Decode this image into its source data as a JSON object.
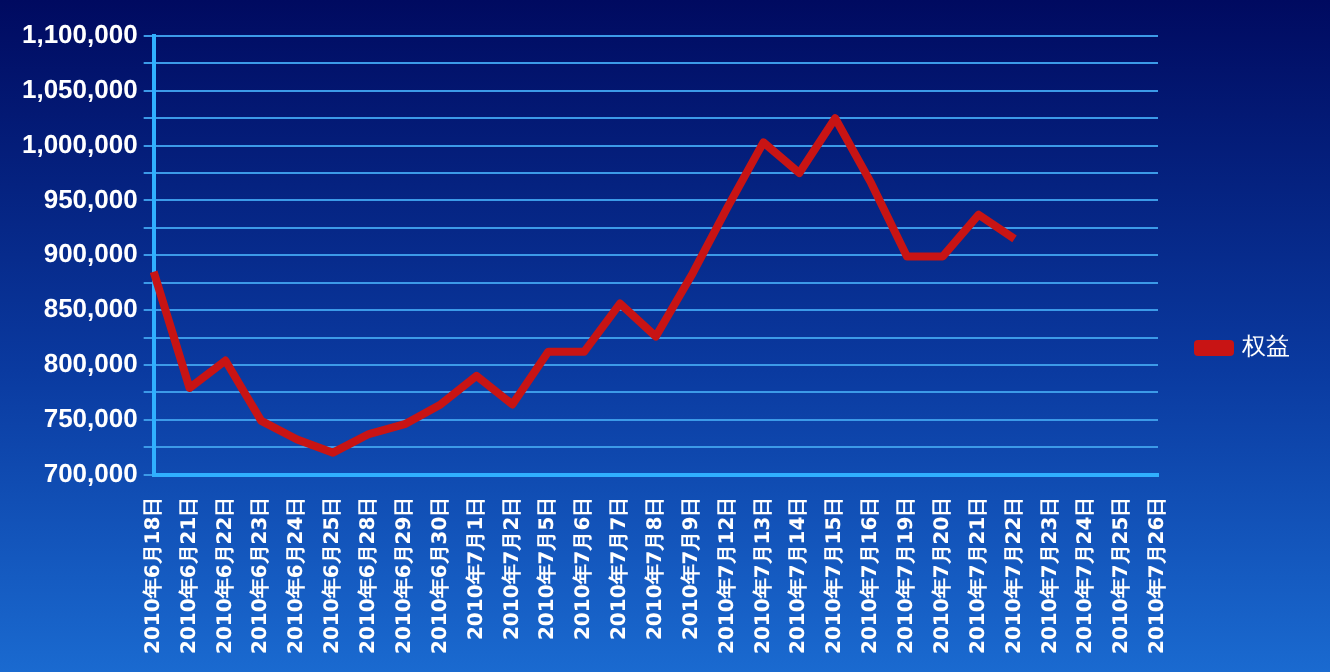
{
  "chart_data": {
    "type": "line",
    "categories": [
      "2010年6月18日",
      "2010年6月21日",
      "2010年6月22日",
      "2010年6月23日",
      "2010年6月24日",
      "2010年6月25日",
      "2010年6月28日",
      "2010年6月29日",
      "2010年6月30日",
      "2010年7月1日",
      "2010年7月2日",
      "2010年7月5日",
      "2010年7月6日",
      "2010年7月7日",
      "2010年7月8日",
      "2010年7月9日",
      "2010年7月12日",
      "2010年7月13日",
      "2010年7月14日",
      "2010年7月15日",
      "2010年7月16日",
      "2010年7月19日",
      "2010年7月20日",
      "2010年7月21日",
      "2010年7月22日",
      "2010年7月23日",
      "2010年7月24日",
      "2010年7月25日",
      "2010年7月26日"
    ],
    "series": [
      {
        "name": "权益",
        "color": "#c81414",
        "values": [
          885000,
          779000,
          804000,
          749000,
          732000,
          720000,
          737000,
          746000,
          764000,
          790000,
          764000,
          812000,
          812000,
          856000,
          826000,
          882000,
          944000,
          1003000,
          975000,
          1025000,
          966000,
          899000,
          899000,
          937000,
          915000,
          null,
          null,
          null,
          null
        ]
      }
    ],
    "ylim": [
      700000,
      1100000
    ],
    "yticks": [
      {
        "value": 700000,
        "label": "700,000"
      },
      {
        "value": 725000,
        "label": null
      },
      {
        "value": 750000,
        "label": "750,000"
      },
      {
        "value": 775000,
        "label": null
      },
      {
        "value": 800000,
        "label": "800,000"
      },
      {
        "value": 825000,
        "label": null
      },
      {
        "value": 850000,
        "label": "850,000"
      },
      {
        "value": 875000,
        "label": null
      },
      {
        "value": 900000,
        "label": "900,000"
      },
      {
        "value": 925000,
        "label": null
      },
      {
        "value": 950000,
        "label": "950,000"
      },
      {
        "value": 975000,
        "label": null
      },
      {
        "value": 1000000,
        "label": "1,000,000"
      },
      {
        "value": 1025000,
        "label": null
      },
      {
        "value": 1050000,
        "label": "1,050,000"
      },
      {
        "value": 1075000,
        "label": null
      },
      {
        "value": 1100000,
        "label": "1,100,000"
      }
    ],
    "grid": "y",
    "legend": "right",
    "marker": "none",
    "line_style": "solid"
  }
}
